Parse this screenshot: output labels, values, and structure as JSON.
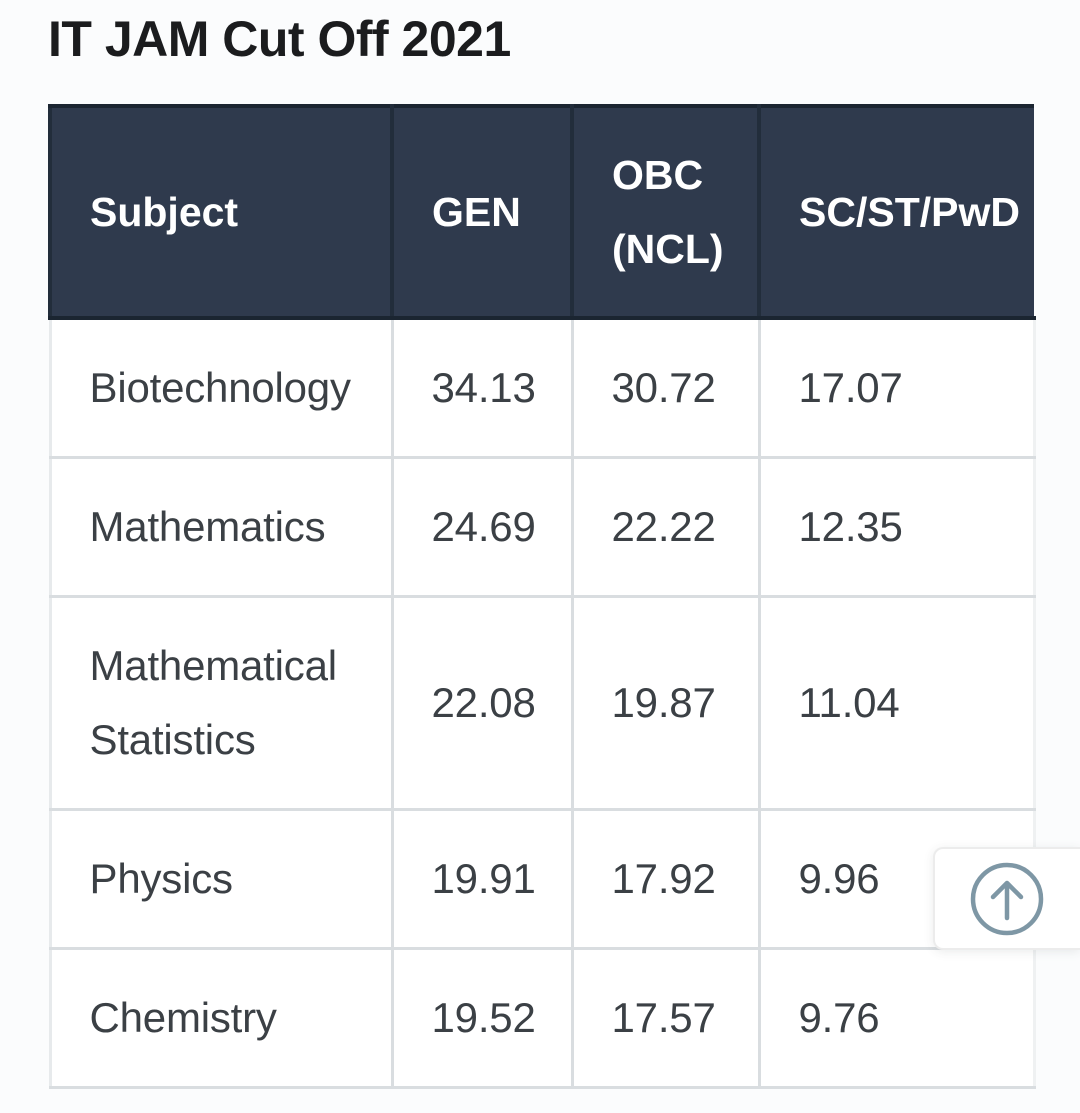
{
  "title": "IT JAM Cut Off 2021",
  "table": {
    "columns": [
      "Subject",
      "GEN",
      "OBC (NCL)",
      "SC/ST/PwD"
    ],
    "rows": [
      {
        "subject": "Biotechnology",
        "values": [
          "34.13",
          "30.72",
          "17.07"
        ]
      },
      {
        "subject": "Mathematics",
        "values": [
          "24.69",
          "22.22",
          "12.35"
        ]
      },
      {
        "subject": "Mathematical Statistics",
        "values": [
          "22.08",
          "19.87",
          "11.04"
        ]
      },
      {
        "subject": "Physics",
        "values": [
          "19.91",
          "17.92",
          "9.96"
        ]
      },
      {
        "subject": "Chemistry",
        "values": [
          "19.52",
          "17.57",
          "9.76"
        ]
      }
    ]
  },
  "chart_data": {
    "type": "table",
    "title": "IT JAM Cut Off 2021",
    "columns": [
      "Subject",
      "GEN",
      "OBC (NCL)",
      "SC/ST/PwD"
    ],
    "rows": [
      [
        "Biotechnology",
        34.13,
        30.72,
        17.07
      ],
      [
        "Mathematics",
        24.69,
        22.22,
        12.35
      ],
      [
        "Mathematical Statistics",
        22.08,
        19.87,
        11.04
      ],
      [
        "Physics",
        19.91,
        17.92,
        9.96
      ],
      [
        "Chemistry",
        19.52,
        17.57,
        9.76
      ]
    ]
  },
  "scroll_top_button": {
    "icon": "arrow-up-circle"
  },
  "colors": {
    "header_bg": "#2f3a4d",
    "header_divider": "#222d3b",
    "header_edge": "#1b2531",
    "header_text": "#ffffff",
    "cell_text": "#3b4045",
    "grid_border": "#d9dde0",
    "title_text": "#1b1c1e",
    "page_bg": "#fbfcfd",
    "icon_color": "#7e97a5"
  }
}
